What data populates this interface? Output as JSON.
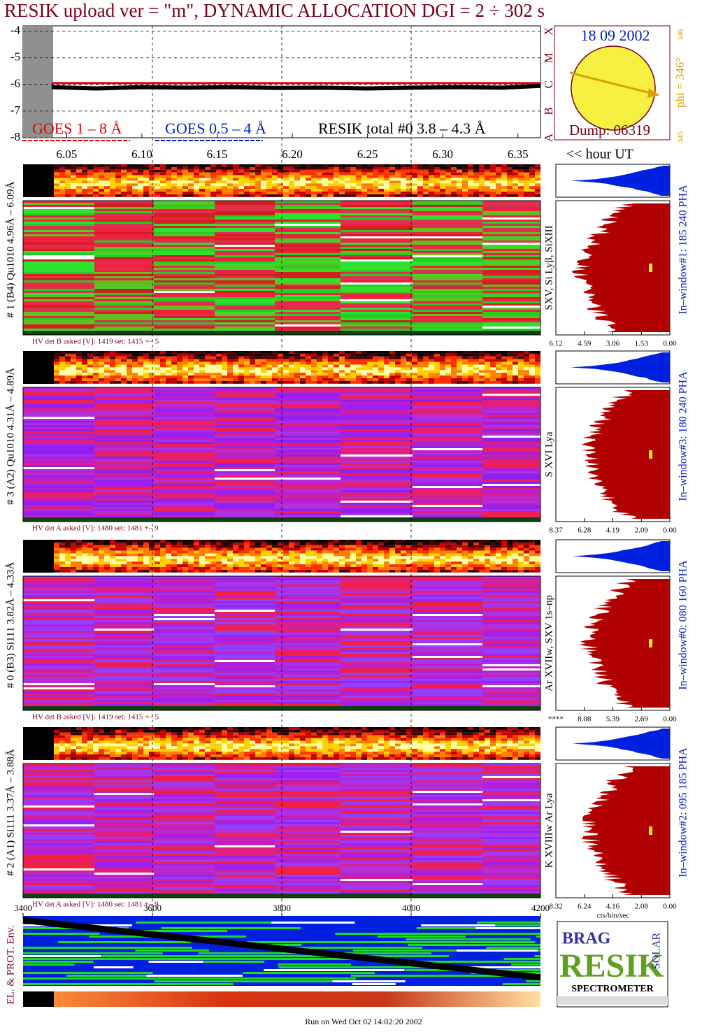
{
  "title": "RESIK upload ver = \"m\", DYNAMIC ALLOCATION  DGI =   2 ÷ 302 s",
  "chart_data": [
    {
      "type": "line",
      "xlim": [
        6.021,
        6.365
      ],
      "xticks": [
        6.05,
        {
          "value": 6.1,
          "label": "6.10"
        },
        6.15,
        {
          "value": 6.2,
          "label": "6.20"
        },
        6.25,
        {
          "value": 6.3,
          "label": "6.30"
        },
        6.35
      ],
      "x_label": "<< hour UT",
      "ylim": [
        -8,
        -3.8
      ],
      "yticks": [
        -4,
        -5,
        -6,
        -7,
        -8
      ],
      "x": [
        6.04,
        6.07,
        6.1,
        6.13,
        6.16,
        6.19,
        6.22,
        6.25,
        6.28,
        6.31,
        6.34,
        6.365
      ],
      "series": [
        {
          "name": "GOES 1 – 8 Å",
          "color": "#e00000",
          "values": [
            -5.95,
            -5.95,
            -5.95,
            -5.95,
            -5.95,
            -5.95,
            -5.95,
            -5.95,
            -5.95,
            -5.95,
            -5.95,
            -5.95
          ]
        },
        {
          "name": "GOES 0.5 – 4 Å",
          "color": "#0020c0",
          "values": [
            null,
            null,
            null,
            null,
            null,
            null,
            null,
            null,
            null,
            null,
            null,
            null
          ]
        },
        {
          "name": "RESIK total #0  3.8 – 4.3 Å",
          "color": "#000000",
          "values": [
            -6.1,
            -6.15,
            -6.1,
            -6.12,
            -6.1,
            -6.13,
            -6.12,
            -6.15,
            -6.12,
            -6.1,
            -6.12,
            -6.05
          ]
        }
      ]
    }
  ],
  "goes_classes": [
    "X",
    "M",
    "C",
    "B",
    "A"
  ],
  "sun": {
    "date": "18 09 2002",
    "phi": "phi = 346°",
    "phi_top": "346",
    "phi_bottom": "345",
    "dump": "Dump: 06319"
  },
  "detectors": [
    {
      "label": "# 1 (B4) Qu1010 4.96Å – 6.09Å",
      "hv": "HV det B asked [V]:  1419 set:  1415 +–    5",
      "line": "SXV, Si Lyβ, SiXIII",
      "window": "In–window#1:  185 240 PHA",
      "xlim": [
        6.12,
        0
      ],
      "xticks": [
        6.12,
        4.59,
        3.06,
        1.53,
        {
          "value": 0,
          "label": "0.00"
        }
      ]
    },
    {
      "label": "# 3 (A2) Qu1010  4.31Å – 4.89Å",
      "hv": "HV det A asked [V]:  1480 set:  1481 +–    9",
      "line": "S XVI Lya",
      "window": "In–window#3:  180 240 PHA",
      "xlim": [
        8.37,
        0
      ],
      "xticks": [
        8.37,
        6.28,
        4.19,
        2.09,
        {
          "value": 0,
          "label": "0.00"
        }
      ]
    },
    {
      "label": "# 0 (B3) Si111  3.82Å – 4.33Å",
      "hv": "HV det B asked [V]:  1419 set:  1415 +–    5",
      "line": "Ar XVIIw,  SXV  1s–np",
      "window": "In–window#0:  080 160 PHA",
      "xlim": [
        10.77,
        0
      ],
      "xticks": [
        {
          "value": 10.77,
          "label": "****"
        },
        8.08,
        5.39,
        2.69,
        {
          "value": 0,
          "label": "0.00"
        }
      ]
    },
    {
      "label": "# 2 (A1) Si111  3.37Å – 3.88Å",
      "hv": "HV det A asked [V]:  1480 set:  1481 +–    9",
      "line": "K XVIIIw  Ar Lya",
      "window": "In–window#2:  095 185 PHA",
      "xlim": [
        8.32,
        0
      ],
      "xticks": [
        8.32,
        6.24,
        4.16,
        2.08,
        {
          "value": 0,
          "label": "0.00"
        }
      ],
      "x_label": "cts/bin/sec"
    }
  ],
  "env_panel": {
    "label": "EL. & PROT. Env.",
    "xlim": [
      3400,
      4200
    ],
    "xticks": [
      3400,
      3600,
      3800,
      4000,
      4200
    ]
  },
  "logo": {
    "top": "BRAG",
    "main": "RESIK",
    "side": "SOLAR",
    "bottom": "SPECTROMETER"
  },
  "footer": "Run on Wed Oct 02 14:02:20 2002"
}
